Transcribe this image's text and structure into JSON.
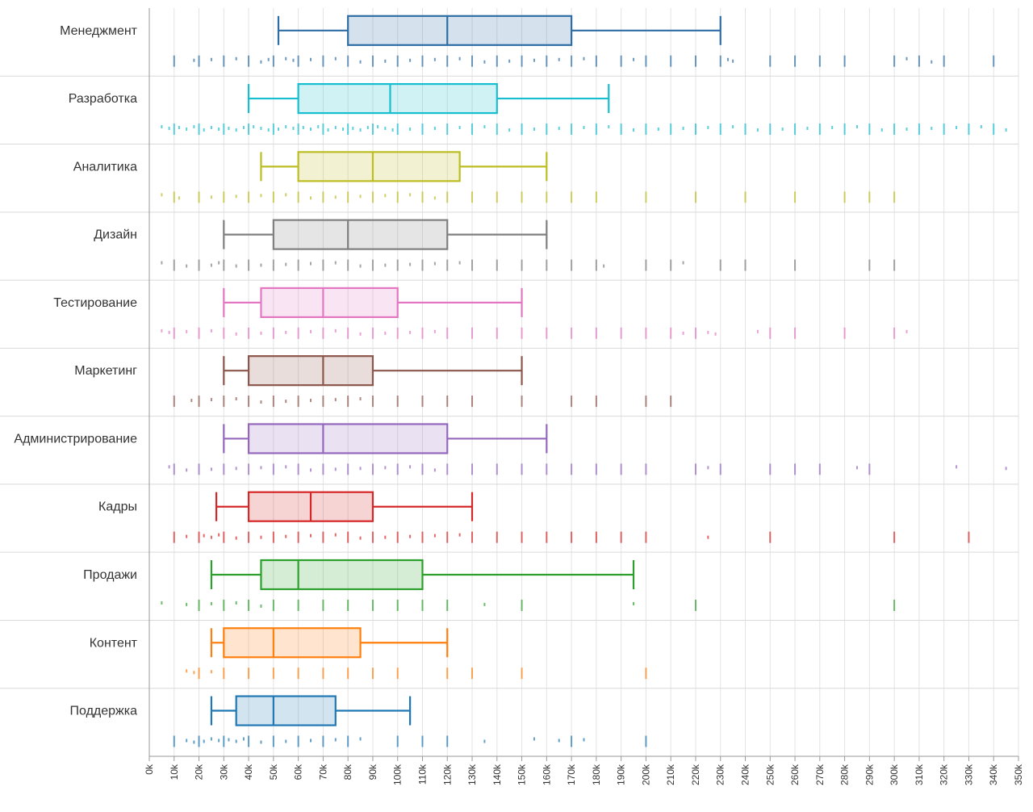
{
  "chart_data": {
    "type": "box",
    "orientation": "horizontal",
    "title": "",
    "xlabel": "",
    "ylabel": "",
    "xlim": [
      0,
      350000
    ],
    "grid": true,
    "legend": "none",
    "x_ticks": [
      "0k",
      "10k",
      "20k",
      "30k",
      "40k",
      "50k",
      "60k",
      "70k",
      "80k",
      "90k",
      "100k",
      "110k",
      "120k",
      "130k",
      "140k",
      "150k",
      "160k",
      "170k",
      "180k",
      "190k",
      "200k",
      "210k",
      "220k",
      "230k",
      "240k",
      "250k",
      "260k",
      "270k",
      "280k",
      "290k",
      "300k",
      "310k",
      "320k",
      "330k",
      "340k",
      "350k"
    ],
    "series": [
      {
        "category": "Менеджмент",
        "color": "#2e6da4",
        "min": 52000,
        "q1": 80000,
        "median": 120000,
        "q3": 170000,
        "max": 230000,
        "points": [
          10000,
          18000,
          20000,
          25000,
          30000,
          35000,
          40000,
          45000,
          48000,
          50000,
          55000,
          58000,
          60000,
          65000,
          70000,
          75000,
          80000,
          85000,
          90000,
          95000,
          100000,
          105000,
          110000,
          115000,
          120000,
          125000,
          130000,
          135000,
          140000,
          145000,
          150000,
          155000,
          160000,
          165000,
          170000,
          175000,
          180000,
          190000,
          195000,
          200000,
          210000,
          220000,
          230000,
          233000,
          235000,
          250000,
          260000,
          270000,
          280000,
          300000,
          305000,
          310000,
          315000,
          320000,
          340000
        ]
      },
      {
        "category": "Разработка",
        "color": "#17becf",
        "min": 40000,
        "q1": 60000,
        "median": 97000,
        "q3": 140000,
        "max": 185000,
        "points": [
          5000,
          8000,
          10000,
          12000,
          15000,
          18000,
          20000,
          22000,
          25000,
          28000,
          30000,
          32000,
          35000,
          38000,
          40000,
          42000,
          45000,
          48000,
          50000,
          52000,
          55000,
          58000,
          60000,
          62000,
          65000,
          68000,
          70000,
          72000,
          75000,
          78000,
          80000,
          82000,
          85000,
          88000,
          90000,
          92000,
          95000,
          98000,
          100000,
          105000,
          110000,
          115000,
          120000,
          125000,
          130000,
          135000,
          140000,
          145000,
          150000,
          155000,
          160000,
          165000,
          170000,
          175000,
          180000,
          185000,
          190000,
          195000,
          200000,
          205000,
          210000,
          215000,
          220000,
          225000,
          230000,
          235000,
          240000,
          245000,
          250000,
          255000,
          260000,
          265000,
          270000,
          275000,
          280000,
          285000,
          290000,
          295000,
          300000,
          305000,
          310000,
          315000,
          320000,
          325000,
          330000,
          335000,
          340000,
          345000
        ]
      },
      {
        "category": "Аналитика",
        "color": "#bcbd22",
        "min": 45000,
        "q1": 60000,
        "median": 90000,
        "q3": 125000,
        "max": 160000,
        "points": [
          5000,
          10000,
          12000,
          20000,
          25000,
          30000,
          35000,
          40000,
          45000,
          50000,
          55000,
          60000,
          65000,
          70000,
          75000,
          80000,
          85000,
          90000,
          95000,
          100000,
          105000,
          110000,
          115000,
          120000,
          130000,
          140000,
          150000,
          160000,
          170000,
          180000,
          200000,
          220000,
          240000,
          260000,
          280000,
          290000,
          300000
        ]
      },
      {
        "category": "Дизайн",
        "color": "#7f7f7f",
        "min": 30000,
        "q1": 50000,
        "median": 80000,
        "q3": 120000,
        "max": 160000,
        "points": [
          5000,
          10000,
          15000,
          20000,
          25000,
          28000,
          30000,
          35000,
          40000,
          45000,
          50000,
          55000,
          60000,
          65000,
          70000,
          75000,
          80000,
          85000,
          90000,
          95000,
          100000,
          105000,
          110000,
          115000,
          120000,
          125000,
          130000,
          140000,
          150000,
          160000,
          170000,
          180000,
          183000,
          200000,
          210000,
          215000,
          230000,
          240000,
          260000,
          290000,
          300000
        ]
      },
      {
        "category": "Тестирование",
        "color": "#e377c2",
        "min": 30000,
        "q1": 45000,
        "median": 70000,
        "q3": 100000,
        "max": 150000,
        "points": [
          5000,
          8000,
          10000,
          15000,
          20000,
          25000,
          30000,
          35000,
          40000,
          45000,
          50000,
          55000,
          60000,
          65000,
          70000,
          75000,
          80000,
          85000,
          90000,
          95000,
          100000,
          105000,
          110000,
          115000,
          120000,
          130000,
          140000,
          150000,
          160000,
          170000,
          180000,
          190000,
          200000,
          210000,
          215000,
          220000,
          225000,
          228000,
          245000,
          250000,
          260000,
          280000,
          300000,
          305000
        ]
      },
      {
        "category": "Маркетинг",
        "color": "#8c564b",
        "min": 30000,
        "q1": 40000,
        "median": 70000,
        "q3": 90000,
        "max": 150000,
        "points": [
          10000,
          17000,
          20000,
          25000,
          30000,
          35000,
          40000,
          45000,
          50000,
          55000,
          60000,
          65000,
          70000,
          75000,
          80000,
          85000,
          90000,
          100000,
          110000,
          120000,
          130000,
          150000,
          170000,
          180000,
          200000,
          210000
        ]
      },
      {
        "category": "Администрирование",
        "color": "#9467bd",
        "min": 30000,
        "q1": 40000,
        "median": 70000,
        "q3": 120000,
        "max": 160000,
        "points": [
          8000,
          10000,
          15000,
          20000,
          25000,
          30000,
          35000,
          40000,
          45000,
          50000,
          55000,
          60000,
          65000,
          70000,
          75000,
          80000,
          85000,
          90000,
          95000,
          100000,
          105000,
          110000,
          115000,
          120000,
          130000,
          140000,
          150000,
          160000,
          170000,
          180000,
          190000,
          200000,
          220000,
          225000,
          230000,
          250000,
          260000,
          270000,
          285000,
          290000,
          325000,
          345000
        ]
      },
      {
        "category": "Кадры",
        "color": "#d62728",
        "min": 27000,
        "q1": 40000,
        "median": 65000,
        "q3": 90000,
        "max": 130000,
        "points": [
          10000,
          15000,
          20000,
          22000,
          25000,
          28000,
          30000,
          35000,
          40000,
          45000,
          50000,
          55000,
          60000,
          65000,
          70000,
          75000,
          80000,
          85000,
          90000,
          95000,
          100000,
          105000,
          110000,
          115000,
          120000,
          125000,
          130000,
          140000,
          150000,
          160000,
          170000,
          180000,
          190000,
          200000,
          225000,
          250000,
          300000,
          330000
        ]
      },
      {
        "category": "Продажи",
        "color": "#2ca02c",
        "min": 25000,
        "q1": 45000,
        "median": 60000,
        "q3": 110000,
        "max": 195000,
        "points": [
          5000,
          15000,
          20000,
          25000,
          30000,
          35000,
          40000,
          45000,
          50000,
          60000,
          70000,
          80000,
          90000,
          100000,
          110000,
          120000,
          135000,
          150000,
          195000,
          220000,
          300000
        ]
      },
      {
        "category": "Контент",
        "color": "#ff7f0e",
        "min": 25000,
        "q1": 30000,
        "median": 50000,
        "q3": 85000,
        "max": 120000,
        "points": [
          15000,
          18000,
          20000,
          25000,
          30000,
          40000,
          50000,
          60000,
          70000,
          80000,
          90000,
          100000,
          120000,
          130000,
          150000,
          200000
        ]
      },
      {
        "category": "Поддержка",
        "color": "#1f77b4",
        "min": 25000,
        "q1": 35000,
        "median": 50000,
        "q3": 75000,
        "max": 105000,
        "points": [
          10000,
          15000,
          18000,
          20000,
          22000,
          25000,
          28000,
          30000,
          32000,
          35000,
          38000,
          40000,
          45000,
          50000,
          55000,
          60000,
          65000,
          70000,
          75000,
          80000,
          85000,
          100000,
          110000,
          120000,
          135000,
          155000,
          165000,
          170000,
          175000,
          200000
        ]
      }
    ]
  }
}
